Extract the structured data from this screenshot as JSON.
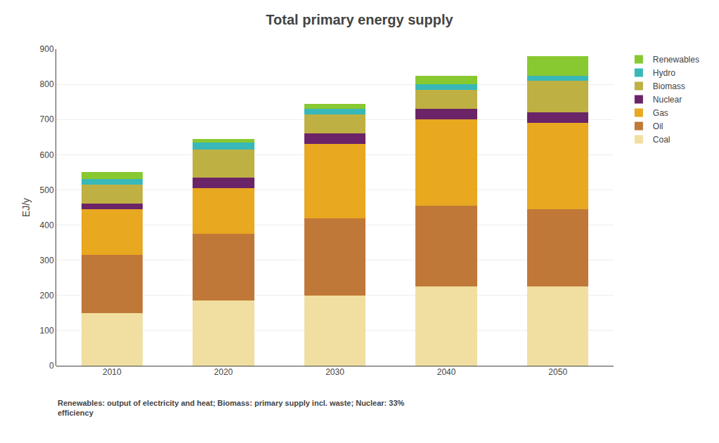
{
  "chart_data": {
    "type": "bar",
    "stacked": true,
    "title": "Total primary energy supply",
    "ylabel": "EJ/y",
    "categories": [
      "2010",
      "2020",
      "2030",
      "2040",
      "2050"
    ],
    "series": [
      {
        "name": "Coal",
        "color": "#f0dfa0",
        "values": [
          150,
          185,
          200,
          225,
          225
        ]
      },
      {
        "name": "Oil",
        "color": "#c07838",
        "values": [
          165,
          190,
          220,
          230,
          220
        ]
      },
      {
        "name": "Gas",
        "color": "#e8a820",
        "values": [
          130,
          130,
          210,
          245,
          245
        ]
      },
      {
        "name": "Nuclear",
        "color": "#6b2468",
        "values": [
          15,
          30,
          30,
          30,
          30
        ]
      },
      {
        "name": "Biomass",
        "color": "#bfb044",
        "values": [
          55,
          80,
          55,
          55,
          90
        ]
      },
      {
        "name": "Hydro",
        "color": "#38b8b8",
        "values": [
          15,
          20,
          15,
          15,
          15
        ]
      },
      {
        "name": "Renewables",
        "color": "#88c830",
        "values": [
          20,
          10,
          15,
          25,
          55
        ]
      }
    ],
    "ylim": [
      0,
      900
    ],
    "yticks": [
      0,
      100,
      200,
      300,
      400,
      500,
      600,
      700,
      800,
      900
    ],
    "grid": true,
    "legend": "upper right",
    "annotations": [
      "Renewables: output of electricity and heat; Biomass: primary supply incl. waste; Nuclear: 33%\nefficiency"
    ]
  }
}
